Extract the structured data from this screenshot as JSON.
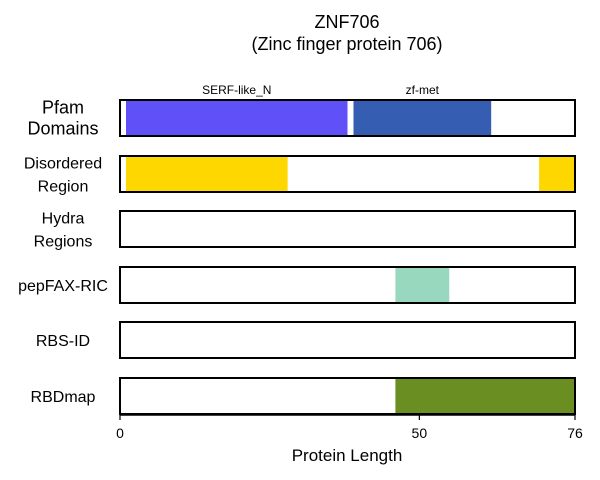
{
  "chart_data": {
    "type": "bar",
    "title": "ZNF706",
    "subtitle": "(Zinc finger protein 706)",
    "xlabel": "Protein Length",
    "xlim": [
      0,
      76
    ],
    "xticks": [
      0,
      50,
      76
    ],
    "tracks": [
      {
        "label_lines": [
          "Pfam",
          "Domains"
        ],
        "segments": [
          {
            "name": "SERF-like_N",
            "start": 1,
            "end": 38,
            "color": "#6050F8"
          },
          {
            "name": "zf-met",
            "start": 39,
            "end": 62,
            "color": "#355EB2"
          }
        ]
      },
      {
        "label_lines": [
          "Disordered",
          "Region"
        ],
        "segments": [
          {
            "start": 1,
            "end": 28,
            "color": "#FFD700"
          },
          {
            "start": 70,
            "end": 76,
            "color": "#FFD700"
          }
        ]
      },
      {
        "label_lines": [
          "Hydra",
          "Regions"
        ],
        "segments": []
      },
      {
        "label_lines": [
          "pepFAX-RIC"
        ],
        "segments": [
          {
            "start": 46,
            "end": 55,
            "color": "#98D8BE"
          }
        ]
      },
      {
        "label_lines": [
          "RBS-ID"
        ],
        "segments": []
      },
      {
        "label_lines": [
          "RBDmap"
        ],
        "segments": [
          {
            "start": 46,
            "end": 76,
            "color": "#6B8E23"
          }
        ]
      }
    ]
  }
}
